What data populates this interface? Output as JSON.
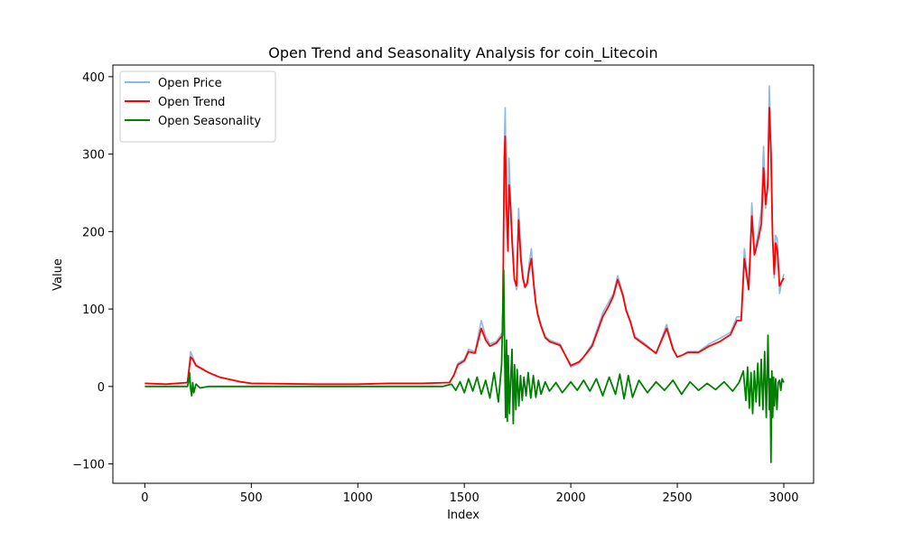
{
  "chart_data": {
    "type": "line",
    "title": "Open Trend and Seasonality Analysis for coin_Litecoin",
    "xlabel": "Index",
    "ylabel": "Value",
    "xlim": [
      -150,
      3140
    ],
    "ylim": [
      -125,
      415
    ],
    "xticks": [
      0,
      500,
      1000,
      1500,
      2000,
      2500,
      3000
    ],
    "yticks": [
      -100,
      0,
      100,
      200,
      300,
      400
    ],
    "grid": false,
    "legend_position": "top-left",
    "series": [
      {
        "name": "Open Price",
        "color": "#8fb8de",
        "x": [
          0,
          100,
          200,
          215,
          225,
          240,
          300,
          350,
          450,
          500,
          800,
          1000,
          1150,
          1300,
          1430,
          1450,
          1470,
          1500,
          1520,
          1550,
          1580,
          1600,
          1620,
          1650,
          1680,
          1688,
          1692,
          1697,
          1705,
          1710,
          1716,
          1725,
          1735,
          1745,
          1755,
          1765,
          1775,
          1785,
          1795,
          1805,
          1815,
          1825,
          1835,
          1845,
          1860,
          1880,
          1900,
          1950,
          2000,
          2040,
          2060,
          2100,
          2150,
          2180,
          2200,
          2220,
          2245,
          2260,
          2280,
          2300,
          2350,
          2400,
          2450,
          2480,
          2500,
          2520,
          2550,
          2600,
          2650,
          2700,
          2750,
          2780,
          2800,
          2815,
          2835,
          2850,
          2862,
          2870,
          2880,
          2895,
          2905,
          2915,
          2925,
          2932,
          2940,
          2947,
          2955,
          2962,
          2970,
          2980,
          2990,
          3000
        ],
        "values": [
          4,
          3,
          5,
          45,
          38,
          28,
          18,
          12,
          6,
          4,
          3,
          3,
          4,
          4,
          5,
          15,
          30,
          35,
          48,
          45,
          85,
          65,
          55,
          58,
          70,
          315,
          360,
          250,
          180,
          295,
          250,
          195,
          140,
          125,
          230,
          175,
          145,
          130,
          135,
          160,
          178,
          140,
          110,
          95,
          80,
          65,
          60,
          55,
          25,
          30,
          38,
          55,
          95,
          110,
          120,
          143,
          120,
          100,
          85,
          65,
          55,
          42,
          80,
          50,
          38,
          40,
          45,
          45,
          55,
          62,
          70,
          90,
          90,
          178,
          130,
          237,
          175,
          185,
          198,
          230,
          310,
          230,
          270,
          388,
          320,
          200,
          140,
          195,
          190,
          120,
          135,
          145
        ]
      },
      {
        "name": "Open Trend",
        "color": "#ff0000",
        "x": [
          0,
          100,
          200,
          215,
          225,
          240,
          300,
          350,
          450,
          500,
          800,
          1000,
          1150,
          1300,
          1430,
          1450,
          1470,
          1500,
          1520,
          1550,
          1580,
          1600,
          1620,
          1650,
          1680,
          1688,
          1692,
          1697,
          1705,
          1710,
          1716,
          1725,
          1735,
          1745,
          1755,
          1765,
          1775,
          1785,
          1795,
          1805,
          1815,
          1825,
          1835,
          1845,
          1860,
          1880,
          1900,
          1950,
          2000,
          2040,
          2060,
          2100,
          2150,
          2180,
          2200,
          2220,
          2245,
          2260,
          2280,
          2300,
          2350,
          2400,
          2450,
          2480,
          2500,
          2520,
          2550,
          2600,
          2650,
          2700,
          2750,
          2780,
          2800,
          2815,
          2835,
          2850,
          2862,
          2870,
          2880,
          2895,
          2905,
          2915,
          2925,
          2932,
          2940,
          2947,
          2955,
          2962,
          2970,
          2980,
          2990,
          3000
        ],
        "values": [
          4,
          3,
          5,
          38,
          35,
          27,
          18,
          12,
          6,
          4,
          3,
          3,
          4,
          4,
          5,
          14,
          28,
          33,
          45,
          43,
          75,
          60,
          52,
          56,
          66,
          295,
          323,
          240,
          175,
          260,
          238,
          185,
          138,
          130,
          215,
          165,
          140,
          128,
          133,
          152,
          165,
          135,
          108,
          92,
          78,
          63,
          58,
          53,
          27,
          32,
          38,
          52,
          90,
          105,
          117,
          138,
          117,
          98,
          83,
          63,
          53,
          43,
          75,
          48,
          38,
          40,
          44,
          44,
          52,
          58,
          67,
          85,
          85,
          165,
          125,
          220,
          170,
          178,
          190,
          210,
          282,
          235,
          260,
          360,
          300,
          195,
          145,
          185,
          175,
          130,
          135,
          140
        ]
      },
      {
        "name": "Open Seasonality",
        "color": "#008000",
        "x": [
          0,
          200,
          205,
          210,
          215,
          220,
          225,
          230,
          240,
          260,
          300,
          400,
          500,
          1000,
          1400,
          1440,
          1460,
          1480,
          1500,
          1520,
          1540,
          1560,
          1580,
          1600,
          1620,
          1640,
          1660,
          1675,
          1685,
          1690,
          1694,
          1698,
          1702,
          1706,
          1712,
          1718,
          1724,
          1730,
          1736,
          1742,
          1748,
          1756,
          1764,
          1772,
          1780,
          1790,
          1800,
          1812,
          1824,
          1836,
          1848,
          1860,
          1880,
          1900,
          1930,
          1960,
          2000,
          2030,
          2060,
          2090,
          2120,
          2150,
          2180,
          2210,
          2230,
          2250,
          2270,
          2290,
          2320,
          2360,
          2400,
          2440,
          2480,
          2520,
          2560,
          2600,
          2640,
          2680,
          2720,
          2760,
          2790,
          2810,
          2822,
          2830,
          2838,
          2846,
          2854,
          2862,
          2870,
          2878,
          2886,
          2894,
          2902,
          2910,
          2918,
          2926,
          2932,
          2936,
          2940,
          2944,
          2948,
          2952,
          2956,
          2962,
          2968,
          2974,
          2980,
          2986,
          2992,
          3000
        ],
        "values": [
          0,
          0,
          5,
          18,
          -3,
          -12,
          5,
          -8,
          3,
          -2,
          0,
          0,
          0,
          0,
          0,
          3,
          -5,
          6,
          -8,
          10,
          -6,
          12,
          -10,
          8,
          -15,
          18,
          -20,
          28,
          150,
          30,
          -40,
          60,
          -45,
          40,
          -35,
          10,
          48,
          -48,
          28,
          -30,
          22,
          -25,
          14,
          -18,
          12,
          -12,
          18,
          -15,
          14,
          -14,
          8,
          -10,
          6,
          -6,
          5,
          -8,
          6,
          -5,
          8,
          -6,
          10,
          -12,
          12,
          -10,
          16,
          -16,
          14,
          -14,
          8,
          -8,
          6,
          -5,
          8,
          -10,
          6,
          -5,
          4,
          -4,
          6,
          -6,
          5,
          20,
          -18,
          25,
          -28,
          18,
          -35,
          20,
          -20,
          30,
          -25,
          35,
          -30,
          45,
          -40,
          66,
          -30,
          10,
          -98,
          20,
          -40,
          12,
          -25,
          10,
          -30,
          5,
          8,
          -5,
          10,
          5
        ]
      }
    ]
  }
}
